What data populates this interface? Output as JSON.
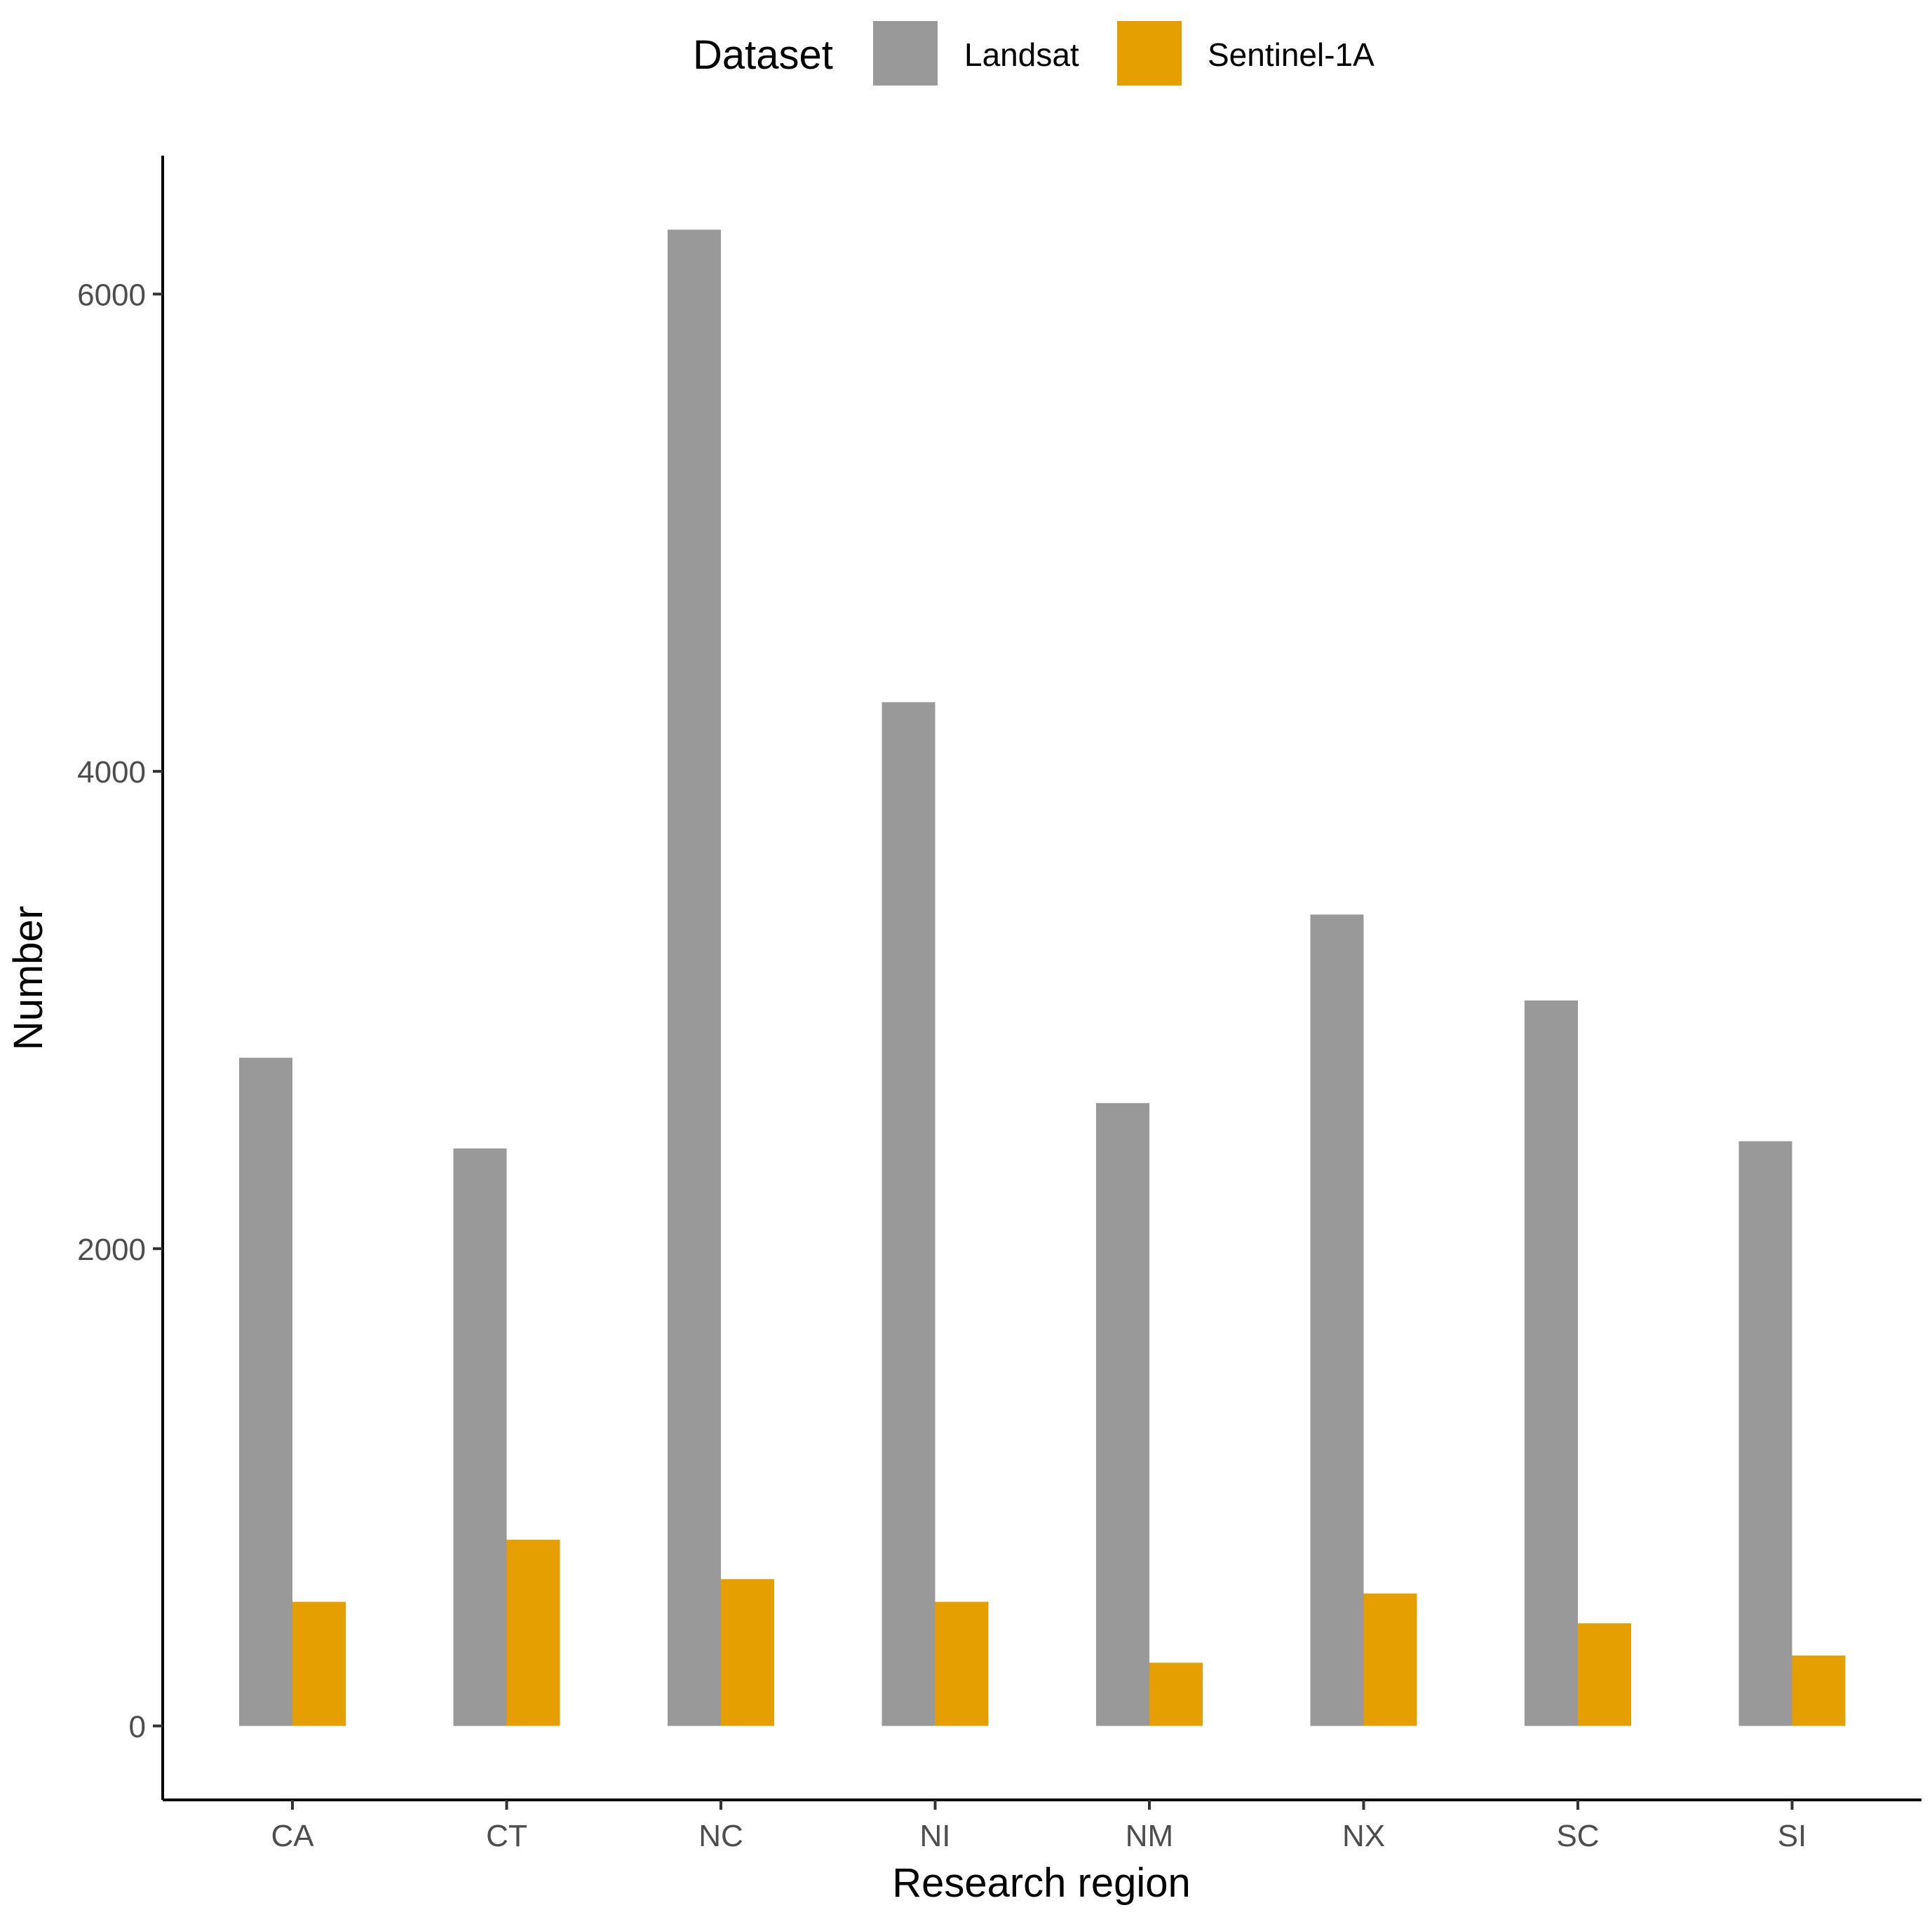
{
  "chart_data": {
    "type": "bar",
    "title": "",
    "xlabel": "Research region",
    "ylabel": "Number",
    "categories": [
      "CA",
      "CT",
      "NC",
      "NI",
      "NM",
      "NX",
      "SC",
      "SI"
    ],
    "series": [
      {
        "name": "Landsat",
        "color": "#999999",
        "values": [
          2800,
          2420,
          6270,
          4290,
          2610,
          3400,
          3040,
          2450
        ]
      },
      {
        "name": "Sentinel-1A",
        "color": "#E69F00",
        "values": [
          520,
          780,
          615,
          520,
          265,
          555,
          430,
          295
        ]
      }
    ],
    "ylim": [
      -310,
      6580
    ],
    "yticks": [
      0,
      2000,
      4000,
      6000
    ],
    "ytick_labels": [
      "0",
      "2000",
      "4000",
      "6000"
    ],
    "grid": false,
    "legend": {
      "title": "Dataset",
      "position": "top"
    }
  }
}
